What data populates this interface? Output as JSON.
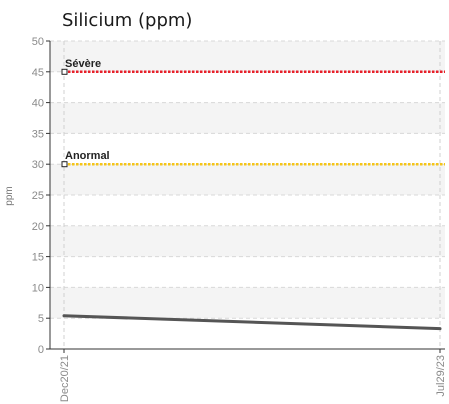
{
  "chart_data": {
    "type": "line",
    "title": "Silicium (ppm)",
    "ylabel": "ppm",
    "xlabel": "",
    "ylim": [
      0,
      50
    ],
    "yticks": [
      0,
      5,
      10,
      15,
      20,
      25,
      30,
      35,
      40,
      45,
      50
    ],
    "x": [
      "Dec20/21",
      "Jul29/23"
    ],
    "series": [
      {
        "values": [
          5.4,
          3.3
        ],
        "color": "#555555"
      }
    ],
    "reference_lines": [
      {
        "label": "Sévère",
        "value": 45,
        "color": "#e8202a"
      },
      {
        "label": "Anormal",
        "value": 30,
        "color": "#f5c518"
      }
    ],
    "grid": true
  }
}
